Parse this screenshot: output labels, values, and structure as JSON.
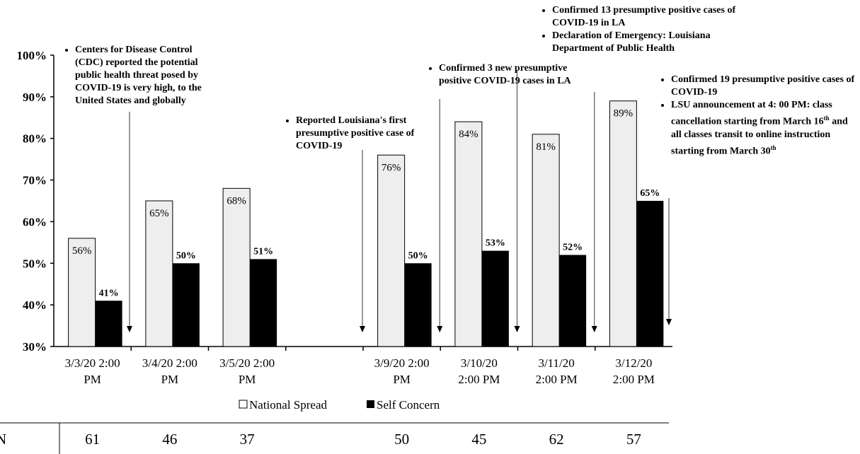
{
  "chart_data": {
    "type": "bar",
    "categories": [
      "3/3/20 2:00 PM",
      "3/4/20 2:00 PM",
      "3/5/20 2:00 PM",
      "",
      "3/9/20 2:00 PM",
      "3/10/20 2:00 PM",
      "3/11/20 2:00 PM",
      "3/12/20 2:00 PM"
    ],
    "category_lines": [
      [
        "3/3/20 2:00",
        "PM"
      ],
      [
        "3/4/20 2:00",
        "PM"
      ],
      [
        "3/5/20 2:00",
        "PM"
      ],
      [
        "",
        ""
      ],
      [
        "3/9/20 2:00",
        "PM"
      ],
      [
        "3/10/20",
        "2:00 PM"
      ],
      [
        "3/11/20",
        "2:00 PM"
      ],
      [
        "3/12/20",
        "2:00 PM"
      ]
    ],
    "series": [
      {
        "name": "National Spread",
        "values": [
          56,
          65,
          68,
          null,
          76,
          84,
          81,
          89
        ],
        "labels": [
          "56%",
          "65%",
          "68%",
          "",
          "76%",
          "84%",
          "81%",
          "89%"
        ],
        "color": "#eeeeee"
      },
      {
        "name": "Self Concern",
        "values": [
          41,
          50,
          51,
          null,
          50,
          53,
          52,
          65
        ],
        "labels": [
          "41%",
          "50%",
          "51%",
          "",
          "50%",
          "53%",
          "52%",
          "65%"
        ],
        "color": "#000000"
      }
    ],
    "ylim": [
      30,
      100
    ],
    "yticks": [
      "30%",
      "40%",
      "50%",
      "60%",
      "70%",
      "80%",
      "90%",
      "100%"
    ],
    "legend": [
      "National Spread",
      "Self Concern"
    ],
    "n_row": {
      "label": "N",
      "values": [
        "61",
        "46",
        "37",
        "",
        "50",
        "45",
        "62",
        "57"
      ]
    },
    "annotations": [
      {
        "category_index": 1,
        "items": [
          "Centers for Disease Control (CDC) reported the potential public health threat posed by COVID-19 is very high, to the United States and globally"
        ]
      },
      {
        "category_index": 4,
        "items": [
          "Reported Louisiana's first presumptive positive case of COVID-19"
        ]
      },
      {
        "category_index": 5,
        "items": [
          "Confirmed 3 new presumptive positive COVID-19 cases in LA"
        ]
      },
      {
        "category_index": 6,
        "items": [
          "Confirmed 13 presumptive positive cases of COVID-19  in LA",
          "Declaration of Emergency: Louisiana Department of Public Health"
        ]
      },
      {
        "category_index": 7,
        "items": [
          "Confirmed 19 presumptive positive cases of COVID-19",
          "LSU announcement at 4: 00 PM: class cancellation starting from March 16th and all classes transit to online instruction starting from March 30th"
        ]
      }
    ]
  }
}
